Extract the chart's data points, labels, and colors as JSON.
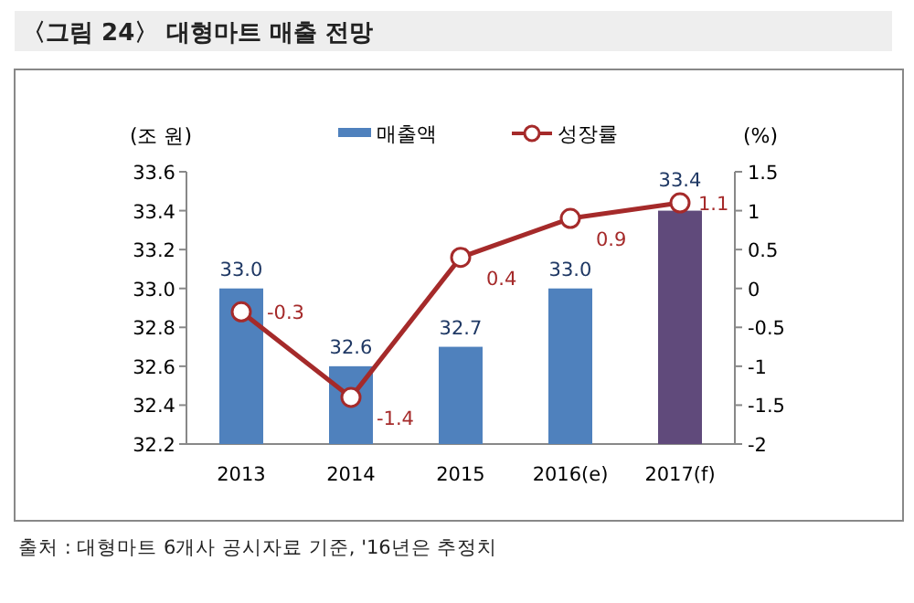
{
  "chart_data": {
    "type": "bar",
    "title": "〈그림 24〉 대형마트 매출 전망",
    "ylabel": "(조 원)",
    "y2label": "(%)",
    "categories": [
      "2013",
      "2014",
      "2015",
      "2016(e)",
      "2017(f)"
    ],
    "series": [
      {
        "name": "매출액",
        "color": "#4f81bd",
        "colors": [
          "#4f81bd",
          "#4f81bd",
          "#4f81bd",
          "#4f81bd",
          "#604a7b"
        ],
        "values": [
          33.0,
          32.6,
          32.7,
          33.0,
          33.4
        ],
        "value_labels": [
          "33.0",
          "32.6",
          "32.7",
          "33.0",
          "33.4"
        ]
      },
      {
        "name": "성장률",
        "type": "line",
        "axis": "y2",
        "color": "#a52a2a",
        "marker": "circle",
        "values": [
          -0.3,
          -1.4,
          0.4,
          0.9,
          1.1
        ],
        "value_labels": [
          "-0.3",
          "-1.4",
          "0.4",
          "0.9",
          "1.1"
        ]
      }
    ],
    "ylim": [
      32.2,
      33.6
    ],
    "yticks": [
      32.2,
      32.4,
      32.6,
      32.8,
      {
        "value": 33,
        "label": "33.0"
      },
      33.2,
      33.4,
      33.6
    ],
    "y2lim": [
      -2,
      1.5
    ],
    "y2ticks": [
      -2,
      -1.5,
      -1,
      -0.5,
      0,
      0.5,
      1,
      1.5
    ],
    "legend": "top",
    "grid": false,
    "annotations": [
      "출처 : 대형마트 6개사 공시자료 기준, '16년은 추정치"
    ]
  }
}
